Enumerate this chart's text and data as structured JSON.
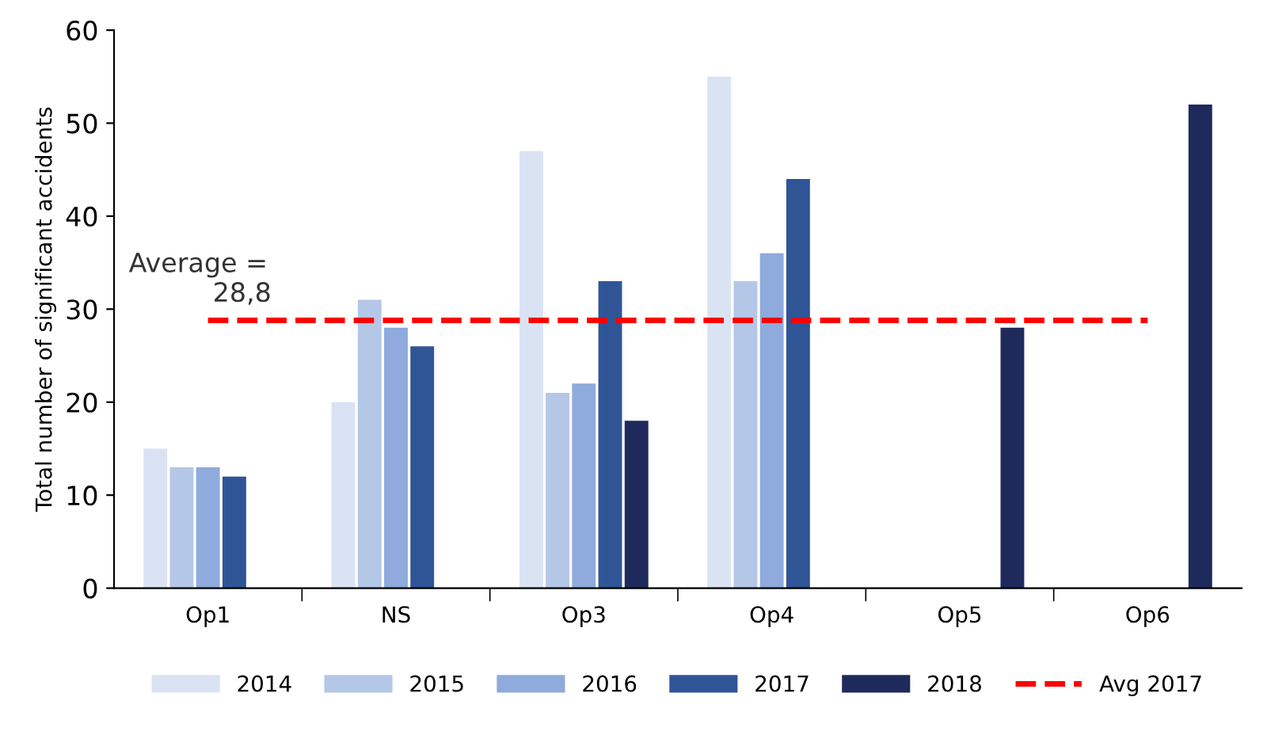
{
  "chart_data": {
    "type": "bar",
    "ylabel": "Total number of significant accidents",
    "categories": [
      "Op1",
      "NS",
      "Op3",
      "Op4",
      "Op5",
      "Op6"
    ],
    "series": [
      {
        "name": "2014",
        "color": "#dae3f3",
        "values": [
          15,
          20,
          47,
          55,
          null,
          null
        ]
      },
      {
        "name": "2015",
        "color": "#b4c7e7",
        "values": [
          13,
          31,
          21,
          33,
          null,
          null
        ]
      },
      {
        "name": "2016",
        "color": "#8faadc",
        "values": [
          13,
          28,
          22,
          36,
          null,
          null
        ]
      },
      {
        "name": "2017",
        "color": "#2f5597",
        "values": [
          12,
          26,
          33,
          44,
          null,
          null
        ]
      },
      {
        "name": "2018",
        "color": "#1f2a5c",
        "values": [
          null,
          null,
          18,
          null,
          28,
          52
        ]
      }
    ],
    "ylim": [
      0,
      60
    ],
    "yticks": [
      0,
      10,
      20,
      30,
      40,
      50,
      60
    ],
    "ref_lines": [
      {
        "axis": "y",
        "value": 28.8,
        "label": "Avg 2017",
        "color": "#ff0000",
        "line_style": "dashed"
      }
    ],
    "annotations": [
      {
        "text": "Average =\n          28,8",
        "x": "Op1",
        "y": 28.8
      }
    ],
    "grid": false,
    "legend": "bottom"
  }
}
